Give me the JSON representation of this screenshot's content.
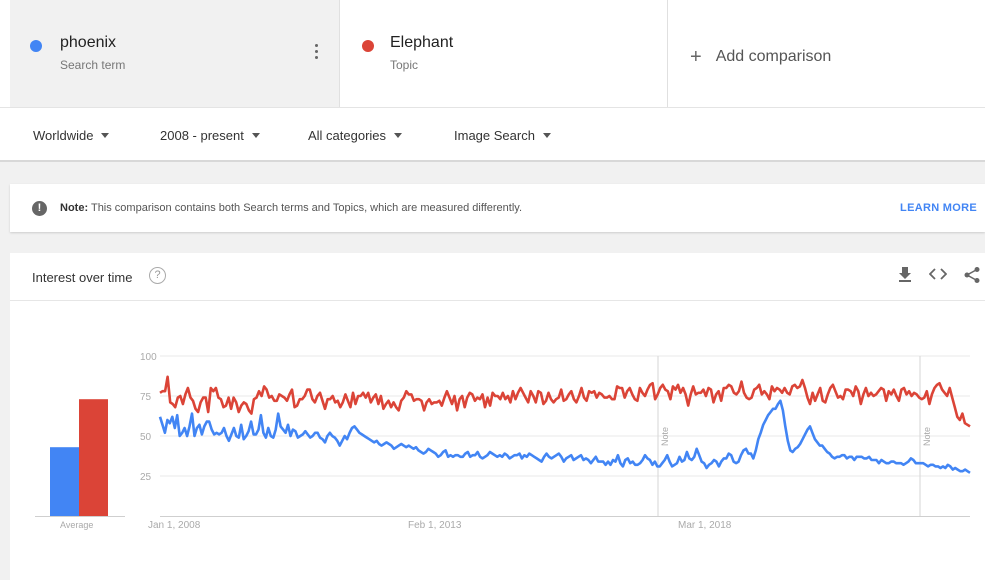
{
  "terms": [
    {
      "name": "phoenix",
      "type": "Search term",
      "color": "#4285f4"
    },
    {
      "name": "Elephant",
      "type": "Topic",
      "color": "#db4437"
    }
  ],
  "add_comparison": "Add comparison",
  "filters": {
    "region": "Worldwide",
    "time": "2008 - present",
    "category": "All categories",
    "property": "Image Search"
  },
  "note": {
    "label": "Note:",
    "text": "This comparison contains both Search terms and Topics, which are measured differently.",
    "link": "LEARN MORE"
  },
  "card": {
    "title": "Interest over time"
  },
  "chart_data": {
    "type": "line",
    "y_ticks": [
      "100",
      "75",
      "50",
      "25"
    ],
    "ylim": [
      0,
      100
    ],
    "x_tick_labels": [
      "Jan 1, 2008",
      "Feb 1, 2013",
      "Mar 1, 2018"
    ],
    "annotations": [
      "Note",
      "Note"
    ],
    "average": {
      "label": "Average",
      "values": [
        43,
        73
      ]
    },
    "series": [
      {
        "name": "phoenix",
        "color": "#4285f4",
        "values": [
          62,
          57,
          52,
          60,
          58,
          62,
          55,
          63,
          50,
          52,
          55,
          50,
          56,
          64,
          50,
          55,
          57,
          51,
          56,
          59,
          59,
          54,
          51,
          52,
          51,
          52,
          55,
          50,
          47,
          51,
          55,
          50,
          49,
          57,
          48,
          50,
          53,
          59,
          51,
          51,
          54,
          63,
          52,
          49,
          55,
          50,
          49,
          54,
          64,
          56,
          54,
          52,
          57,
          50,
          54,
          53,
          49,
          50,
          51,
          53,
          51,
          49,
          50,
          52,
          52,
          49,
          48,
          46,
          50,
          52,
          50,
          49,
          47,
          44,
          47,
          50,
          48,
          52,
          55,
          56,
          54,
          52,
          51,
          50,
          49,
          48,
          47,
          46,
          47,
          45,
          44,
          45,
          46,
          45,
          44,
          42,
          43,
          44,
          45,
          44,
          43,
          44,
          43,
          42,
          43,
          41,
          40,
          39,
          40,
          42,
          41,
          40,
          39,
          37,
          38,
          40,
          41,
          37,
          38,
          37,
          38,
          38,
          37,
          37,
          39,
          40,
          37,
          38,
          38,
          40,
          37,
          36,
          37,
          38,
          40,
          39,
          38,
          37,
          38,
          37,
          39,
          38,
          36,
          37,
          38,
          38,
          39,
          36,
          38,
          37,
          39,
          38,
          37,
          36,
          35,
          34,
          37,
          39,
          37,
          36,
          37,
          38,
          39,
          37,
          34,
          36,
          37,
          38,
          35,
          36,
          37,
          38,
          35,
          36,
          35,
          33,
          35,
          37,
          34,
          34,
          34,
          32,
          34,
          32,
          35,
          34,
          38,
          33,
          31,
          35,
          36,
          33,
          34,
          32,
          32,
          33,
          35,
          38,
          36,
          35,
          32,
          34,
          31,
          31,
          33,
          35,
          38,
          34,
          31,
          32,
          33,
          37,
          34,
          35,
          40,
          36,
          35,
          37,
          42,
          38,
          34,
          33,
          30,
          32,
          33,
          35,
          34,
          31,
          34,
          36,
          36,
          39,
          38,
          34,
          33,
          34,
          38,
          41,
          42,
          39,
          39,
          36,
          41,
          48,
          52,
          57,
          60,
          63,
          65,
          67,
          67,
          70,
          72,
          66,
          56,
          47,
          41,
          40,
          42,
          43,
          45,
          48,
          51,
          54,
          56,
          52,
          48,
          46,
          44,
          44,
          42,
          40,
          39,
          37,
          36,
          37,
          37,
          38,
          38,
          36,
          37,
          37,
          35,
          37,
          37,
          37,
          36,
          36,
          37,
          35,
          35,
          35,
          33,
          35,
          34,
          33,
          33,
          34,
          34,
          33,
          33,
          33,
          32,
          33,
          34,
          36,
          35,
          33,
          33,
          33,
          33,
          32,
          31,
          32,
          32,
          31,
          31,
          30,
          31,
          30,
          32,
          31,
          29,
          30,
          29,
          28,
          28,
          29,
          28,
          27
        ]
      },
      {
        "name": "Elephant",
        "color": "#db4437",
        "values": [
          77,
          78,
          78,
          87,
          71,
          70,
          68,
          74,
          75,
          70,
          76,
          80,
          74,
          72,
          67,
          65,
          71,
          74,
          74,
          65,
          80,
          78,
          80,
          74,
          73,
          68,
          69,
          74,
          67,
          74,
          71,
          65,
          69,
          71,
          70,
          66,
          64,
          73,
          74,
          78,
          75,
          81,
          79,
          74,
          75,
          72,
          72,
          76,
          75,
          74,
          72,
          76,
          79,
          68,
          69,
          73,
          73,
          75,
          79,
          79,
          73,
          71,
          75,
          77,
          72,
          67,
          73,
          73,
          75,
          71,
          72,
          68,
          71,
          76,
          72,
          68,
          77,
          70,
          75,
          75,
          77,
          74,
          77,
          71,
          74,
          76,
          70,
          75,
          67,
          70,
          72,
          68,
          71,
          68,
          66,
          72,
          74,
          78,
          76,
          76,
          72,
          73,
          73,
          72,
          66,
          71,
          73,
          70,
          71,
          71,
          72,
          69,
          74,
          78,
          74,
          70,
          75,
          66,
          73,
          75,
          68,
          74,
          77,
          76,
          72,
          74,
          73,
          76,
          68,
          74,
          69,
          77,
          75,
          75,
          73,
          77,
          73,
          75,
          71,
          78,
          73,
          77,
          80,
          77,
          74,
          71,
          78,
          75,
          71,
          78,
          77,
          70,
          72,
          77,
          73,
          71,
          73,
          74,
          79,
          72,
          73,
          76,
          78,
          73,
          71,
          75,
          80,
          74,
          72,
          78,
          77,
          78,
          74,
          77,
          76,
          74,
          74,
          75,
          73,
          73,
          81,
          80,
          80,
          74,
          78,
          80,
          76,
          73,
          72,
          80,
          77,
          75,
          79,
          82,
          83,
          73,
          76,
          80,
          82,
          79,
          78,
          73,
          81,
          79,
          82,
          77,
          80,
          76,
          69,
          76,
          81,
          76,
          77,
          77,
          79,
          75,
          80,
          79,
          71,
          76,
          78,
          72,
          80,
          80,
          82,
          81,
          77,
          76,
          78,
          84,
          77,
          74,
          73,
          74,
          79,
          80,
          82,
          76,
          78,
          76,
          73,
          81,
          78,
          80,
          79,
          77,
          80,
          77,
          76,
          81,
          82,
          80,
          81,
          85,
          80,
          74,
          70,
          77,
          72,
          76,
          80,
          72,
          71,
          76,
          80,
          82,
          78,
          74,
          75,
          73,
          79,
          79,
          78,
          75,
          81,
          78,
          70,
          76,
          80,
          75,
          77,
          75,
          76,
          78,
          80,
          79,
          72,
          78,
          76,
          79,
          75,
          72,
          79,
          80,
          76,
          78,
          75,
          77,
          76,
          74,
          73,
          74,
          78,
          70,
          76,
          80,
          82,
          83,
          79,
          77,
          75,
          80,
          74,
          68,
          62,
          60,
          64,
          58,
          57,
          56
        ]
      }
    ]
  }
}
